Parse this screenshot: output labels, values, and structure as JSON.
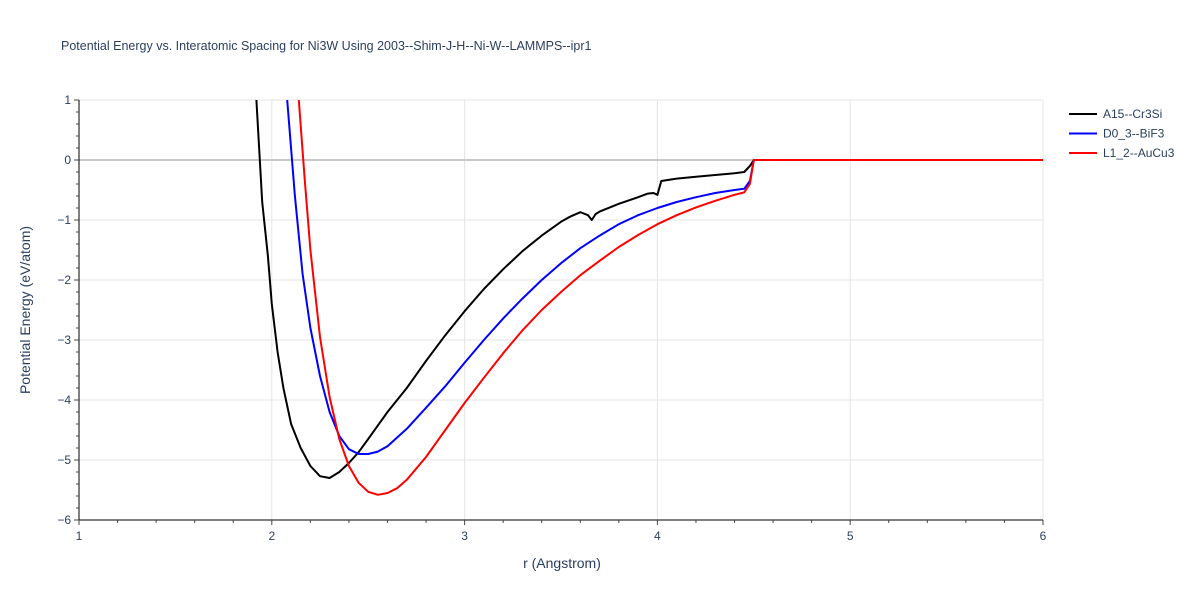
{
  "chart_data": {
    "type": "line",
    "title": "Potential Energy vs. Interatomic Spacing for Ni3W Using 2003--Shim-J-H--Ni-W--LAMMPS--ipr1",
    "xlabel": "r (Angstrom)",
    "ylabel": "Potential Energy (eV/atom)",
    "xlim": [
      1,
      6
    ],
    "ylim": [
      -6,
      1
    ],
    "x_ticks": [
      1,
      2,
      3,
      4,
      5,
      6
    ],
    "y_ticks": [
      1,
      0,
      -1,
      -2,
      -3,
      -4,
      -5,
      -6
    ],
    "x_tick_labels": [
      "1",
      "2",
      "3",
      "4",
      "5",
      "6"
    ],
    "y_tick_labels": [
      "1",
      "0",
      "−1",
      "−2",
      "−3",
      "−4",
      "−5",
      "−6"
    ],
    "grid": true,
    "legend_position": "top-right",
    "series": [
      {
        "name": "A15--Cr3Si",
        "color": "#000000",
        "x": [
          1.92,
          1.95,
          1.98,
          2.0,
          2.03,
          2.06,
          2.1,
          2.15,
          2.2,
          2.25,
          2.3,
          2.35,
          2.4,
          2.45,
          2.5,
          2.6,
          2.7,
          2.8,
          2.9,
          3.0,
          3.1,
          3.2,
          3.3,
          3.4,
          3.5,
          3.55,
          3.6,
          3.64,
          3.66,
          3.68,
          3.7,
          3.8,
          3.9,
          3.95,
          3.98,
          4.0,
          4.02,
          4.1,
          4.2,
          4.3,
          4.4,
          4.45,
          4.48,
          4.5,
          4.6,
          5.0,
          5.5,
          6.0
        ],
        "y": [
          1.0,
          -0.7,
          -1.6,
          -2.4,
          -3.2,
          -3.8,
          -4.4,
          -4.8,
          -5.1,
          -5.27,
          -5.3,
          -5.2,
          -5.05,
          -4.87,
          -4.65,
          -4.2,
          -3.8,
          -3.35,
          -2.92,
          -2.52,
          -2.15,
          -1.82,
          -1.52,
          -1.26,
          -1.03,
          -0.94,
          -0.87,
          -0.92,
          -1.0,
          -0.9,
          -0.86,
          -0.73,
          -0.62,
          -0.56,
          -0.55,
          -0.58,
          -0.35,
          -0.31,
          -0.28,
          -0.25,
          -0.22,
          -0.2,
          -0.1,
          0.0,
          0.0,
          0.0,
          0.0,
          0.0
        ]
      },
      {
        "name": "D0_3--BiF3",
        "color": "#0000ff",
        "x": [
          2.08,
          2.12,
          2.16,
          2.2,
          2.25,
          2.3,
          2.35,
          2.4,
          2.45,
          2.5,
          2.55,
          2.6,
          2.7,
          2.8,
          2.9,
          3.0,
          3.1,
          3.2,
          3.3,
          3.4,
          3.5,
          3.6,
          3.7,
          3.8,
          3.9,
          4.0,
          4.1,
          4.2,
          4.3,
          4.4,
          4.45,
          4.48,
          4.5,
          4.6,
          5.0,
          5.5,
          6.0
        ],
        "y": [
          1.0,
          -0.6,
          -1.9,
          -2.8,
          -3.6,
          -4.2,
          -4.6,
          -4.82,
          -4.9,
          -4.9,
          -4.86,
          -4.77,
          -4.48,
          -4.13,
          -3.77,
          -3.38,
          -3.0,
          -2.64,
          -2.31,
          -2.0,
          -1.72,
          -1.47,
          -1.26,
          -1.07,
          -0.92,
          -0.8,
          -0.7,
          -0.62,
          -0.55,
          -0.5,
          -0.48,
          -0.35,
          0.0,
          0.0,
          0.0,
          0.0,
          0.0
        ]
      },
      {
        "name": "L1_2--AuCu3",
        "color": "#ff0000",
        "x": [
          2.14,
          2.17,
          2.2,
          2.25,
          2.3,
          2.35,
          2.4,
          2.45,
          2.5,
          2.55,
          2.6,
          2.65,
          2.7,
          2.8,
          2.9,
          3.0,
          3.1,
          3.2,
          3.3,
          3.4,
          3.5,
          3.6,
          3.7,
          3.8,
          3.9,
          4.0,
          4.1,
          4.2,
          4.3,
          4.4,
          4.45,
          4.48,
          4.5,
          4.6,
          5.0,
          5.5,
          6.0
        ],
        "y": [
          1.0,
          -0.3,
          -1.5,
          -2.95,
          -3.95,
          -4.65,
          -5.1,
          -5.38,
          -5.53,
          -5.58,
          -5.55,
          -5.47,
          -5.33,
          -4.95,
          -4.5,
          -4.05,
          -3.63,
          -3.22,
          -2.84,
          -2.5,
          -2.2,
          -1.92,
          -1.68,
          -1.45,
          -1.25,
          -1.07,
          -0.92,
          -0.79,
          -0.68,
          -0.58,
          -0.54,
          -0.4,
          0.0,
          0.0,
          0.0,
          0.0,
          0.0
        ]
      }
    ]
  }
}
